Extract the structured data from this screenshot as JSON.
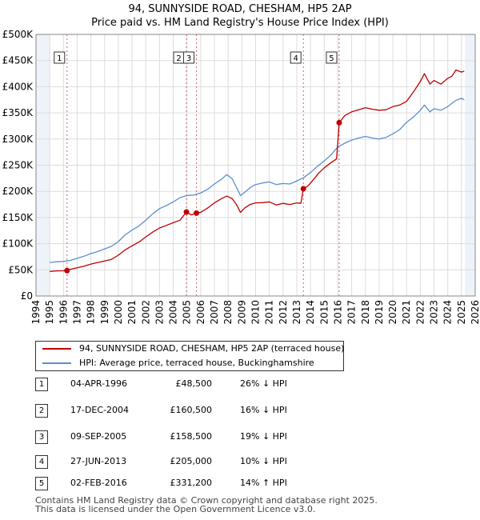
{
  "title_line1": "94, SUNNYSIDE ROAD, CHESHAM, HP5 2AP",
  "title_line2": "Price paid vs. HM Land Registry's House Price Index (HPI)",
  "legend": {
    "property_label": "94, SUNNYSIDE ROAD, CHESHAM, HP5 2AP (terraced house)",
    "hpi_label": "HPI: Average price, terraced house, Buckinghamshire"
  },
  "colors": {
    "property": "#c00000",
    "hpi": "#5b8fce",
    "grid": "#dddddd",
    "plot_bg": "#eef2f9",
    "marker_line": "#e06060"
  },
  "sales": [
    {
      "num": "1",
      "date": "04-APR-1996",
      "price": "£48,500",
      "hpi": "26% ↓ HPI"
    },
    {
      "num": "2",
      "date": "17-DEC-2004",
      "price": "£160,500",
      "hpi": "16% ↓ HPI"
    },
    {
      "num": "3",
      "date": "09-SEP-2005",
      "price": "£158,500",
      "hpi": "19% ↓ HPI"
    },
    {
      "num": "4",
      "date": "27-JUN-2013",
      "price": "£205,000",
      "hpi": "10% ↓ HPI"
    },
    {
      "num": "5",
      "date": "02-FEB-2016",
      "price": "£331,200",
      "hpi": "14% ↑ HPI"
    }
  ],
  "footer_line1": "Contains HM Land Registry data © Crown copyright and database right 2025.",
  "footer_line2": "This data is licensed under the Open Government Licence v3.0.",
  "chart_data": {
    "type": "line",
    "title": "94, SUNNYSIDE ROAD, CHESHAM, HP5 2AP",
    "subtitle": "Price paid vs. HM Land Registry's House Price Index (HPI)",
    "xlabel": "",
    "ylabel": "",
    "xlim": [
      1994,
      2026
    ],
    "ylim": [
      0,
      500000
    ],
    "x_ticks": [
      1994,
      1995,
      1996,
      1997,
      1998,
      1999,
      2000,
      2001,
      2002,
      2003,
      2004,
      2005,
      2006,
      2007,
      2008,
      2009,
      2010,
      2011,
      2012,
      2013,
      2014,
      2015,
      2016,
      2017,
      2018,
      2019,
      2020,
      2021,
      2022,
      2023,
      2024,
      2025,
      2026
    ],
    "y_ticks": [
      0,
      50000,
      100000,
      150000,
      200000,
      250000,
      300000,
      350000,
      400000,
      450000,
      500000
    ],
    "y_tick_labels": [
      "£0",
      "£50K",
      "£100K",
      "£150K",
      "£200K",
      "£250K",
      "£300K",
      "£350K",
      "£400K",
      "£450K",
      "£500K"
    ],
    "shaded_ranges": [
      [
        1994,
        1995.0
      ],
      [
        2025.25,
        2026
      ]
    ],
    "grid": true,
    "series": [
      {
        "name": "94, SUNNYSIDE ROAD, CHESHAM, HP5 2AP (terraced house)",
        "color": "#c00000",
        "x": [
          1995.0,
          1995.5,
          1996.0,
          1996.26,
          1996.5,
          1997.0,
          1997.5,
          1998.0,
          1998.5,
          1999.0,
          1999.5,
          2000.0,
          2000.5,
          2001.0,
          2001.5,
          2002.0,
          2002.5,
          2003.0,
          2003.5,
          2004.0,
          2004.5,
          2004.96,
          2005.3,
          2005.69,
          2006.0,
          2006.5,
          2007.0,
          2007.5,
          2007.9,
          2008.3,
          2008.6,
          2008.9,
          2009.2,
          2009.6,
          2010.0,
          2010.5,
          2011.0,
          2011.5,
          2012.0,
          2012.5,
          2013.0,
          2013.3,
          2013.48,
          2013.8,
          2014.2,
          2014.6,
          2015.0,
          2015.5,
          2015.9,
          2016.09,
          2016.5,
          2017.0,
          2017.5,
          2018.0,
          2018.5,
          2019.0,
          2019.5,
          2020.0,
          2020.5,
          2021.0,
          2021.5,
          2022.0,
          2022.3,
          2022.7,
          2023.0,
          2023.5,
          2024.0,
          2024.3,
          2024.6,
          2025.0,
          2025.2
        ],
        "y": [
          47000,
          48000,
          48200,
          48500,
          51000,
          54000,
          57000,
          61000,
          64000,
          67000,
          70000,
          78000,
          88000,
          96000,
          103000,
          113000,
          122000,
          130000,
          135000,
          140000,
          145000,
          160500,
          155000,
          158500,
          160000,
          168000,
          178000,
          186000,
          191000,
          186000,
          175000,
          160000,
          168000,
          175000,
          178000,
          178500,
          180000,
          174000,
          177000,
          175000,
          178000,
          177000,
          205000,
          210000,
          222000,
          235000,
          245000,
          255000,
          262000,
          331200,
          345000,
          352000,
          356000,
          360000,
          357000,
          355000,
          356000,
          362000,
          365000,
          372000,
          390000,
          410000,
          425000,
          405000,
          412000,
          405000,
          416000,
          420000,
          432000,
          428000,
          430000
        ]
      },
      {
        "name": "HPI: Average price, terraced house, Buckinghamshire",
        "color": "#5b8fce",
        "x": [
          1995.0,
          1995.5,
          1996.0,
          1996.5,
          1997.0,
          1997.5,
          1998.0,
          1998.5,
          1999.0,
          1999.5,
          2000.0,
          2000.5,
          2001.0,
          2001.5,
          2002.0,
          2002.5,
          2003.0,
          2003.5,
          2004.0,
          2004.5,
          2005.0,
          2005.5,
          2006.0,
          2006.5,
          2007.0,
          2007.5,
          2007.9,
          2008.3,
          2008.6,
          2008.9,
          2009.2,
          2009.6,
          2010.0,
          2010.5,
          2011.0,
          2011.5,
          2012.0,
          2012.5,
          2013.0,
          2013.5,
          2014.0,
          2014.5,
          2015.0,
          2015.5,
          2016.0,
          2016.5,
          2017.0,
          2017.5,
          2018.0,
          2018.5,
          2019.0,
          2019.5,
          2020.0,
          2020.5,
          2021.0,
          2021.5,
          2022.0,
          2022.3,
          2022.7,
          2023.0,
          2023.5,
          2024.0,
          2024.3,
          2024.6,
          2025.0,
          2025.2
        ],
        "y": [
          64000,
          65500,
          66000,
          68000,
          72000,
          76000,
          81000,
          85000,
          90000,
          95000,
          104000,
          117000,
          126000,
          134000,
          145000,
          157000,
          167000,
          173000,
          180000,
          188000,
          192000,
          193000,
          197000,
          204000,
          214000,
          223000,
          232000,
          224000,
          208000,
          192000,
          198000,
          207000,
          213000,
          216000,
          218000,
          213000,
          215000,
          214000,
          220000,
          226000,
          236000,
          248000,
          258000,
          270000,
          285000,
          292000,
          298000,
          302000,
          305000,
          302000,
          300000,
          303000,
          310000,
          318000,
          332000,
          342000,
          355000,
          365000,
          352000,
          358000,
          355000,
          362000,
          368000,
          374000,
          378000,
          375000
        ]
      }
    ],
    "annotations": [
      {
        "label": "1",
        "x": 1996.26,
        "y": 48500
      },
      {
        "label": "2",
        "x": 2004.96,
        "y": 160500
      },
      {
        "label": "3",
        "x": 2005.69,
        "y": 158500
      },
      {
        "label": "4",
        "x": 2013.48,
        "y": 205000
      },
      {
        "label": "5",
        "x": 2016.09,
        "y": 331200
      }
    ]
  }
}
